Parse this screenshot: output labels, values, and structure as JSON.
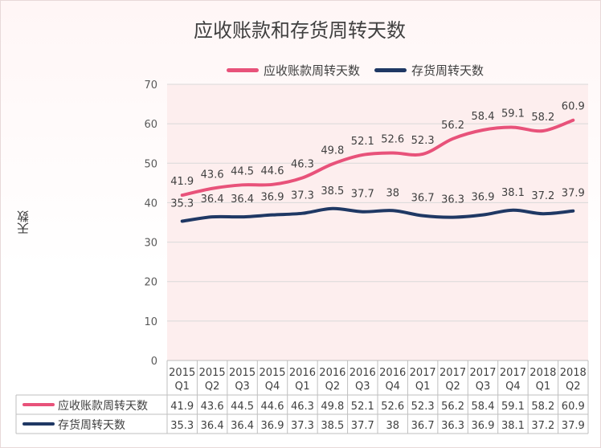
{
  "chart_data": {
    "type": "line",
    "title": "应收账款和存货周转天数",
    "ylabel": "天数",
    "xlabel": "",
    "ylim": [
      0,
      70
    ],
    "yticks": [
      0,
      10,
      20,
      30,
      40,
      50,
      60,
      70
    ],
    "categories": [
      [
        "2015",
        "Q1"
      ],
      [
        "2015",
        "Q2"
      ],
      [
        "2015",
        "Q3"
      ],
      [
        "2015",
        "Q4"
      ],
      [
        "2016",
        "Q1"
      ],
      [
        "2016",
        "Q2"
      ],
      [
        "2016",
        "Q3"
      ],
      [
        "2016",
        "Q4"
      ],
      [
        "2017",
        "Q1"
      ],
      [
        "2017",
        "Q2"
      ],
      [
        "2017",
        "Q3"
      ],
      [
        "2017",
        "Q4"
      ],
      [
        "2018",
        "Q1"
      ],
      [
        "2018",
        "Q2"
      ]
    ],
    "series": [
      {
        "name": "应收账款周转天数",
        "color": "#e8527a",
        "values": [
          41.9,
          43.6,
          44.5,
          44.6,
          46.3,
          49.8,
          52.1,
          52.6,
          52.3,
          56.2,
          58.4,
          59.1,
          58.2,
          60.9
        ]
      },
      {
        "name": "存货周转天数",
        "color": "#1f3864",
        "values": [
          35.3,
          36.4,
          36.4,
          36.9,
          37.3,
          38.5,
          37.7,
          38,
          36.7,
          36.3,
          36.9,
          38.1,
          37.2,
          37.9
        ]
      }
    ],
    "data_table": true,
    "grid": true,
    "legend_position": "top"
  }
}
